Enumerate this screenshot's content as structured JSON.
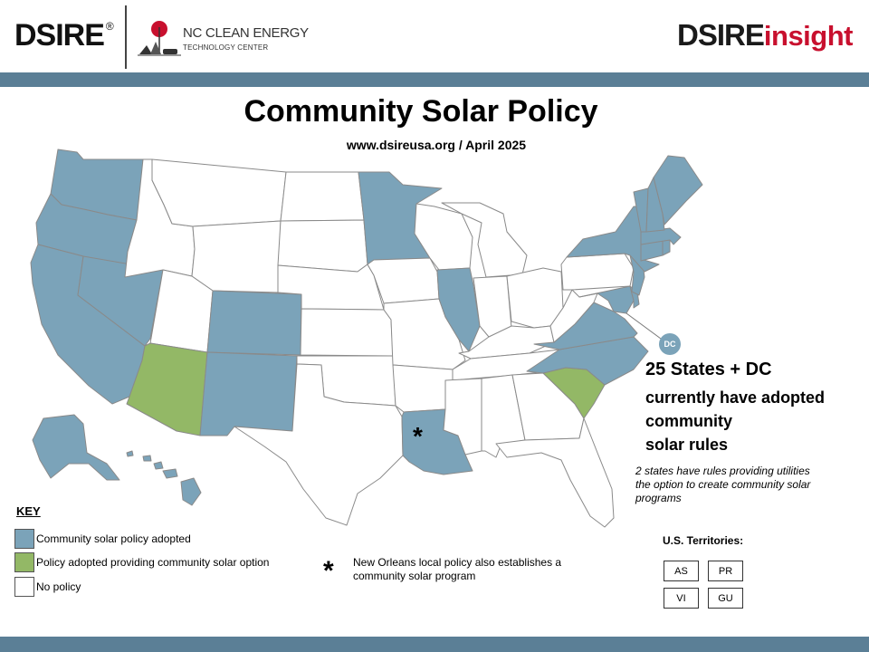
{
  "header": {
    "dsire_logo": "DSIRE",
    "dsire_reg": "®",
    "ncc_line1": "NC CLEAN ENERGY",
    "ncc_line2": "TECHNOLOGY CENTER",
    "insight_a": "DSIRE",
    "insight_b": "insight"
  },
  "title": "Community Solar Policy",
  "subtitle": "www.dsireusa.org / April 2025",
  "colors": {
    "adopted": "#7ba3b9",
    "option": "#93b866",
    "none": "#ffffff",
    "band": "#5b7f96"
  },
  "map": {
    "dc_label": "DC",
    "asterisk": "*",
    "states_adopted": [
      "WA",
      "OR",
      "CA",
      "NV",
      "CO",
      "NM",
      "MN",
      "IL",
      "LA",
      "VA",
      "NC",
      "NY",
      "NJ",
      "DE",
      "MD",
      "ME",
      "VT",
      "NH",
      "MA",
      "CT",
      "RI",
      "HI",
      "AK",
      "DC"
    ],
    "states_option": [
      "AZ",
      "SC"
    ]
  },
  "stats": {
    "headline": "25 States + DC",
    "line1": "currently have adopted",
    "line2": "community",
    "line3": "solar rules",
    "note": "2 states have rules providing utilities the option to create community solar programs"
  },
  "key": {
    "title": "KEY",
    "items": [
      {
        "label": "Community solar policy adopted",
        "color": "#7ba3b9"
      },
      {
        "label": "Policy adopted providing community solar option",
        "color": "#93b866"
      },
      {
        "label": "No policy",
        "color": "#ffffff"
      }
    ]
  },
  "footnote": {
    "symbol": "*",
    "text": "New Orleans local policy also establishes a community solar program"
  },
  "territories": {
    "title": "U.S. Territories:",
    "items": [
      "AS",
      "PR",
      "VI",
      "GU"
    ]
  }
}
